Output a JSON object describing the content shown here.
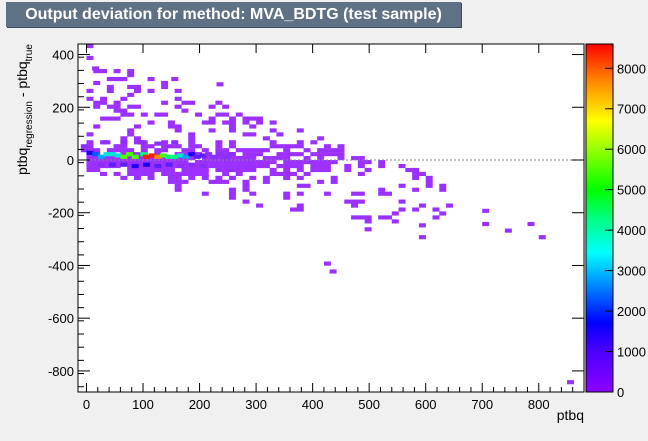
{
  "chart_data": {
    "type": "heatmap",
    "title": "Output deviation for method: MVA_BDTG (test sample)",
    "xlabel": "ptbq",
    "ylabel": {
      "prefix": "ptbq",
      "sub1": "regression",
      "mid": " - ptbq",
      "sub2": "true"
    },
    "xlim": [
      -15,
      880
    ],
    "ylim": [
      -880,
      440
    ],
    "x_ticks": [
      0,
      100,
      200,
      300,
      400,
      500,
      600,
      700,
      800
    ],
    "y_ticks": [
      400,
      200,
      0,
      -200,
      -400,
      -600,
      -800
    ],
    "colorbar": {
      "min": 0,
      "max": 8600,
      "ticks": [
        0,
        1000,
        2000,
        3000,
        4000,
        5000,
        6000,
        7000,
        8000
      ]
    },
    "reference_line_y": 0,
    "bin_size": {
      "x": 12,
      "y": 15
    },
    "bins": [
      [
        -10,
        45,
        180
      ],
      [
        -10,
        30,
        120
      ],
      [
        0,
        20,
        1800
      ],
      [
        10,
        15,
        2600
      ],
      [
        20,
        5,
        3400
      ],
      [
        30,
        15,
        3700
      ],
      [
        40,
        15,
        4100
      ],
      [
        50,
        10,
        4200
      ],
      [
        60,
        5,
        5100
      ],
      [
        70,
        15,
        5400
      ],
      [
        80,
        5,
        5100
      ],
      [
        95,
        15,
        4900
      ],
      [
        100,
        5,
        8400
      ],
      [
        110,
        10,
        8100
      ],
      [
        120,
        5,
        7600
      ],
      [
        130,
        10,
        5600
      ],
      [
        140,
        5,
        4500
      ],
      [
        150,
        5,
        4800
      ],
      [
        160,
        10,
        3700
      ],
      [
        170,
        5,
        3200
      ],
      [
        180,
        15,
        2100
      ],
      [
        190,
        5,
        1200
      ],
      [
        200,
        10,
        900
      ],
      [
        210,
        15,
        600
      ],
      [
        220,
        5,
        500
      ],
      [
        230,
        15,
        350
      ],
      [
        240,
        0,
        250
      ],
      [
        250,
        15,
        120
      ],
      [
        20,
        -25,
        600
      ],
      [
        40,
        -25,
        900
      ],
      [
        60,
        -25,
        1400
      ],
      [
        80,
        -30,
        1600
      ],
      [
        100,
        -25,
        1500
      ],
      [
        120,
        -30,
        1300
      ],
      [
        140,
        -25,
        900
      ],
      [
        160,
        -30,
        700
      ],
      [
        180,
        -25,
        400
      ],
      [
        200,
        -30,
        200
      ],
      [
        30,
        60,
        200
      ],
      [
        60,
        60,
        400
      ],
      [
        90,
        60,
        500
      ],
      [
        120,
        55,
        350
      ],
      [
        150,
        60,
        200
      ]
    ]
  },
  "colors": {
    "palette": [
      "#8c2eff",
      "#5a1dff",
      "#1a00ff",
      "#0059ff",
      "#00a8ff",
      "#00e6d8",
      "#00ff7a",
      "#4dff00",
      "#b3ff00",
      "#ffe600",
      "#ff8c00",
      "#ff1a00"
    ],
    "sparse_bin": "#9b30ff"
  }
}
